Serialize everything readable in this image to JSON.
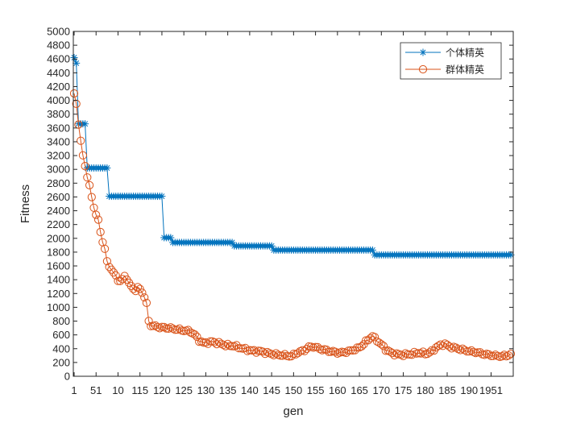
{
  "chart_data": {
    "type": "line",
    "title": "",
    "xlabel": "gen",
    "ylabel": "Fitness",
    "xlim": [
      1,
      200
    ],
    "ylim": [
      0,
      5000
    ],
    "yticks": [
      0,
      200,
      400,
      600,
      800,
      1000,
      1200,
      1400,
      1600,
      1800,
      2000,
      2200,
      2400,
      2600,
      2800,
      3000,
      3200,
      3400,
      3600,
      3800,
      4000,
      4200,
      4400,
      4600,
      4800,
      5000
    ],
    "xtick_labels": [
      "1",
      "51",
      "10",
      "115",
      "120",
      "125",
      "130",
      "135",
      "140",
      "145",
      "150",
      "155",
      "160",
      "165",
      "170",
      "175",
      "180",
      "185",
      "190",
      "1951"
    ],
    "legend_position": "top-right",
    "colors": {
      "elite": "#0072BD",
      "group": "#D95319",
      "axis": "#262626"
    },
    "series": [
      {
        "name": "个体精英",
        "marker": "asterisk",
        "steps": [
          [
            1,
            4620
          ],
          [
            2,
            4540
          ],
          [
            3,
            3660
          ],
          [
            6,
            3660
          ],
          [
            7,
            3020
          ],
          [
            16,
            3020
          ],
          [
            17,
            2610
          ],
          [
            41,
            2610
          ],
          [
            42,
            2010
          ],
          [
            45,
            2010
          ],
          [
            46,
            1940
          ],
          [
            73,
            1940
          ],
          [
            74,
            1890
          ],
          [
            91,
            1890
          ],
          [
            92,
            1830
          ],
          [
            137,
            1830
          ],
          [
            138,
            1760
          ],
          [
            200,
            1760
          ]
        ]
      },
      {
        "name": "群体精英",
        "marker": "circle",
        "anchors": [
          [
            1,
            4100
          ],
          [
            2,
            3950
          ],
          [
            3,
            3650
          ],
          [
            4,
            3400
          ],
          [
            5,
            3200
          ],
          [
            6,
            3050
          ],
          [
            7,
            2900
          ],
          [
            8,
            2750
          ],
          [
            9,
            2600
          ],
          [
            10,
            2450
          ],
          [
            11,
            2350
          ],
          [
            12,
            2250
          ],
          [
            13,
            2100
          ],
          [
            14,
            1950
          ],
          [
            15,
            1850
          ],
          [
            16,
            1650
          ],
          [
            17,
            1600
          ],
          [
            18,
            1550
          ],
          [
            19,
            1500
          ],
          [
            20,
            1450
          ],
          [
            21,
            1400
          ],
          [
            22,
            1380
          ],
          [
            23,
            1400
          ],
          [
            24,
            1450
          ],
          [
            25,
            1420
          ],
          [
            26,
            1350
          ],
          [
            27,
            1300
          ],
          [
            28,
            1270
          ],
          [
            29,
            1250
          ],
          [
            30,
            1280
          ],
          [
            31,
            1260
          ],
          [
            32,
            1220
          ],
          [
            33,
            1150
          ],
          [
            34,
            1050
          ],
          [
            35,
            800
          ],
          [
            36,
            740
          ],
          [
            37,
            730
          ],
          [
            40,
            710
          ],
          [
            44,
            700
          ],
          [
            48,
            680
          ],
          [
            52,
            660
          ],
          [
            54,
            650
          ],
          [
            56,
            600
          ],
          [
            58,
            520
          ],
          [
            60,
            480
          ],
          [
            64,
            500
          ],
          [
            68,
            470
          ],
          [
            70,
            450
          ],
          [
            74,
            440
          ],
          [
            78,
            400
          ],
          [
            82,
            370
          ],
          [
            86,
            360
          ],
          [
            90,
            330
          ],
          [
            94,
            310
          ],
          [
            98,
            300
          ],
          [
            100,
            290
          ],
          [
            102,
            330
          ],
          [
            106,
            380
          ],
          [
            108,
            420
          ],
          [
            110,
            430
          ],
          [
            114,
            390
          ],
          [
            118,
            360
          ],
          [
            122,
            340
          ],
          [
            126,
            360
          ],
          [
            128,
            380
          ],
          [
            130,
            400
          ],
          [
            132,
            440
          ],
          [
            134,
            500
          ],
          [
            136,
            560
          ],
          [
            137,
            580
          ],
          [
            139,
            520
          ],
          [
            141,
            460
          ],
          [
            143,
            390
          ],
          [
            146,
            330
          ],
          [
            150,
            310
          ],
          [
            154,
            320
          ],
          [
            158,
            340
          ],
          [
            162,
            330
          ],
          [
            164,
            360
          ],
          [
            166,
            420
          ],
          [
            168,
            450
          ],
          [
            170,
            470
          ],
          [
            172,
            430
          ],
          [
            176,
            400
          ],
          [
            180,
            370
          ],
          [
            184,
            350
          ],
          [
            188,
            320
          ],
          [
            192,
            300
          ],
          [
            196,
            290
          ],
          [
            198,
            300
          ],
          [
            200,
            320
          ]
        ]
      }
    ]
  }
}
